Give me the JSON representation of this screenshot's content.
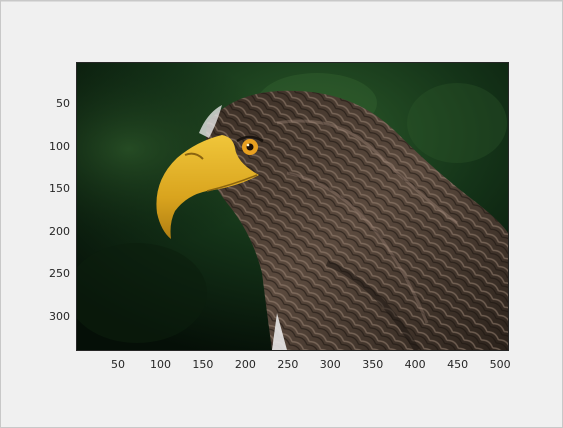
{
  "figure": {
    "axes": {
      "x_ticks": [
        "50",
        "100",
        "150",
        "200",
        "250",
        "300",
        "350",
        "400",
        "450",
        "500"
      ],
      "y_ticks": [
        "50",
        "100",
        "150",
        "200",
        "250",
        "300"
      ],
      "x_tick_values": [
        50,
        100,
        150,
        200,
        250,
        300,
        350,
        400,
        450,
        500
      ],
      "y_tick_values": [
        50,
        100,
        150,
        200,
        250,
        300
      ],
      "x_range": [
        0.5,
        510.5
      ],
      "y_range": [
        0.5,
        340.5
      ],
      "y_direction": "reversed"
    },
    "image": {
      "subject": "eagle-head-profile",
      "colors": {
        "background_dark": "#07140b",
        "background_green": "#1f4a22",
        "feather_dark": "#2a211a",
        "feather_light": "#8a7466",
        "beak": "#e2b126",
        "eye": "#e8a020"
      }
    }
  }
}
